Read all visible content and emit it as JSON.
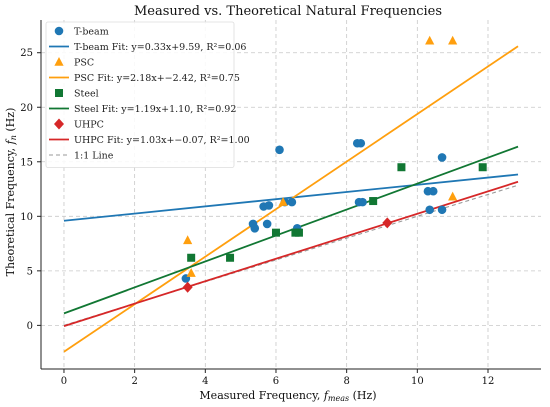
{
  "chart_data": {
    "type": "scatter",
    "title": "Measured vs. Theoretical Natural Frequencies",
    "xlabel": "Measured Frequency, ",
    "xlabel_symbol": "f",
    "xlabel_sub": "meas",
    "xlabel_unit": " (Hz)",
    "ylabel": "Theoretical Frequency, ",
    "ylabel_symbol": "f",
    "ylabel_sub": "n",
    "ylabel_unit": " (Hz)",
    "xlim": [
      -0.65,
      13.5
    ],
    "ylim": [
      -4,
      28
    ],
    "xticks": [
      0,
      2,
      4,
      6,
      8,
      10,
      12
    ],
    "yticks": [
      0,
      5,
      10,
      15,
      20,
      25
    ],
    "grid": true,
    "legend_position": "top-left",
    "series": [
      {
        "name": "T-beam",
        "marker": "circle",
        "color": "#1f77b4",
        "points": [
          [
            3.45,
            4.3
          ],
          [
            5.35,
            9.3
          ],
          [
            5.4,
            8.9
          ],
          [
            5.65,
            10.9
          ],
          [
            5.75,
            9.3
          ],
          [
            5.8,
            11.0
          ],
          [
            6.1,
            16.1
          ],
          [
            6.25,
            11.3
          ],
          [
            6.45,
            11.3
          ],
          [
            6.6,
            8.9
          ],
          [
            8.3,
            16.7
          ],
          [
            8.4,
            16.7
          ],
          [
            8.35,
            11.3
          ],
          [
            8.45,
            11.3
          ],
          [
            10.3,
            12.3
          ],
          [
            10.35,
            10.6
          ],
          [
            10.45,
            12.3
          ],
          [
            10.7,
            15.4
          ],
          [
            10.7,
            10.6
          ]
        ]
      },
      {
        "name": "PSC",
        "marker": "triangle",
        "color": "#ff9f0e",
        "points": [
          [
            3.5,
            7.8
          ],
          [
            3.6,
            4.8
          ],
          [
            6.2,
            11.3
          ],
          [
            10.35,
            26.1
          ],
          [
            11.0,
            26.1
          ],
          [
            11.0,
            11.8
          ]
        ]
      },
      {
        "name": "Steel",
        "marker": "square",
        "color": "#117733",
        "points": [
          [
            3.6,
            6.2
          ],
          [
            4.7,
            6.2
          ],
          [
            6.0,
            8.5
          ],
          [
            6.55,
            8.5
          ],
          [
            6.65,
            8.5
          ],
          [
            8.75,
            11.4
          ],
          [
            9.55,
            14.5
          ],
          [
            11.85,
            14.5
          ]
        ]
      },
      {
        "name": "UHPC",
        "marker": "diamond",
        "color": "#d62728",
        "points": [
          [
            3.5,
            3.5
          ],
          [
            9.15,
            9.4
          ]
        ]
      }
    ],
    "fit_lines": [
      {
        "name": "T-beam Fit: y=0.33x+9.59, R²=0.06",
        "slope": 0.33,
        "intercept": 9.59,
        "color": "#1f77b4"
      },
      {
        "name": "PSC Fit: y=2.18x+−2.42, R²=0.75",
        "slope": 2.18,
        "intercept": -2.42,
        "color": "#ff9f0e"
      },
      {
        "name": "Steel Fit: y=1.19x+1.10, R²=0.92",
        "slope": 1.19,
        "intercept": 1.1,
        "color": "#117733"
      },
      {
        "name": "UHPC Fit: y=1.03x+−0.07, R²=1.00",
        "slope": 1.03,
        "intercept": -0.07,
        "color": "#d62728"
      }
    ],
    "fit_x_range": [
      0,
      12.85
    ],
    "reference_line": {
      "name": "1:1 Line",
      "color": "#9a9a9a",
      "x_range": [
        0,
        12.85
      ]
    },
    "legend_order": [
      "T-beam",
      "T-beam Fit: y=0.33x+9.59, R²=0.06",
      "PSC",
      "PSC Fit: y=2.18x+−2.42, R²=0.75",
      "Steel",
      "Steel Fit: y=1.19x+1.10, R²=0.92",
      "UHPC",
      "UHPC Fit: y=1.03x+−0.07, R²=1.00",
      "1:1 Line"
    ]
  }
}
